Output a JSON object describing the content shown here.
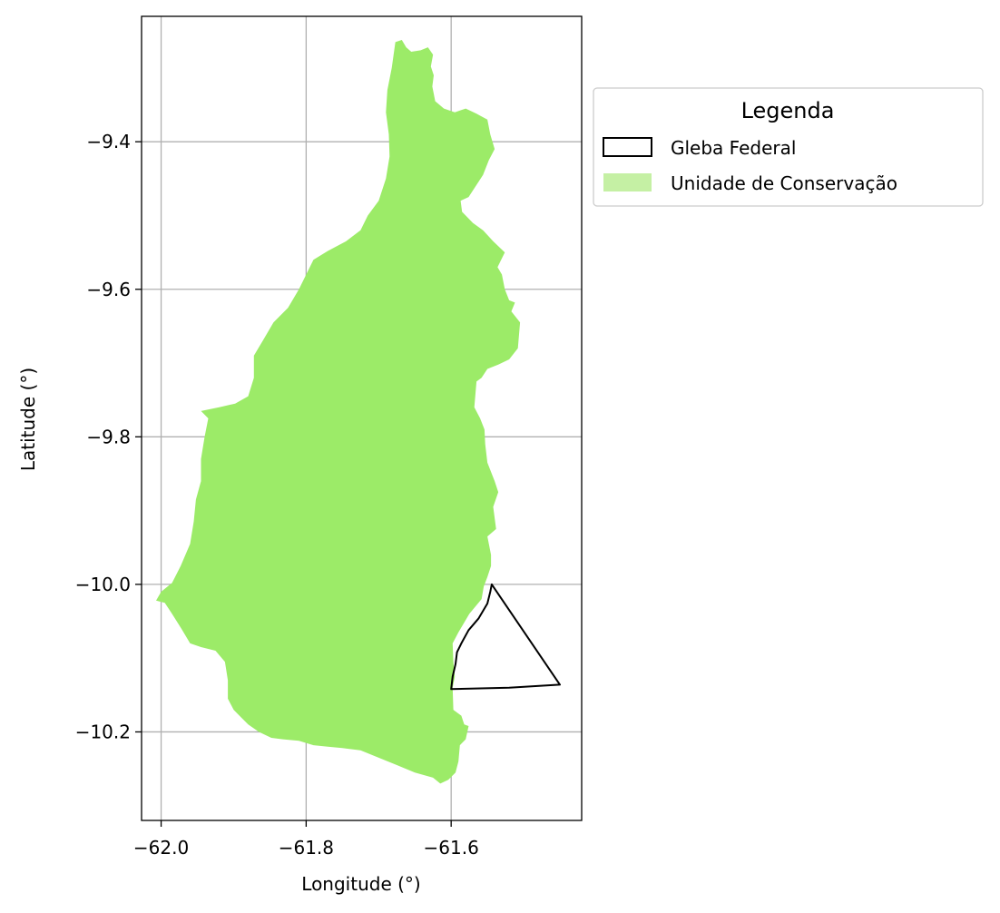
{
  "figure": {
    "xlabel": "Longitude (°)",
    "ylabel": "Latitude (°)"
  },
  "axes": {
    "xlim": [
      -62.027,
      -61.42
    ],
    "ylim": [
      -10.32,
      -9.23
    ],
    "xticks": [
      {
        "value": -62.0,
        "label": "−62.0"
      },
      {
        "value": -61.8,
        "label": "−61.8"
      },
      {
        "value": -61.6,
        "label": "−61.6"
      }
    ],
    "yticks": [
      {
        "value": -9.4,
        "label": "−9.4"
      },
      {
        "value": -9.6,
        "label": "−9.6"
      },
      {
        "value": -9.8,
        "label": "−9.8"
      },
      {
        "value": -10.0,
        "label": "−10.0"
      },
      {
        "value": -10.2,
        "label": "−10.2"
      }
    ],
    "grid": true,
    "grid_color": "#b0b0b0"
  },
  "legend": {
    "title": "Legenda",
    "placement": "outside-upper-right",
    "entries": [
      {
        "label": "Gleba Federal",
        "facecolor": "#ffffff",
        "edgecolor": "#000000"
      },
      {
        "label": "Unidade de Conservação",
        "facecolor": "#c5f0a4",
        "edgecolor": "none"
      }
    ]
  },
  "layers": {
    "unidade_de_conservacao": {
      "fill": "#9ceb68",
      "coords": [
        [
          -61.677,
          -9.265
        ],
        [
          -61.668,
          -9.262
        ],
        [
          -61.662,
          -9.272
        ],
        [
          -61.655,
          -9.278
        ],
        [
          -61.642,
          -9.276
        ],
        [
          -61.632,
          -9.272
        ],
        [
          -61.625,
          -9.282
        ],
        [
          -61.628,
          -9.298
        ],
        [
          -61.624,
          -9.31
        ],
        [
          -61.626,
          -9.325
        ],
        [
          -61.622,
          -9.345
        ],
        [
          -61.61,
          -9.355
        ],
        [
          -61.595,
          -9.36
        ],
        [
          -61.58,
          -9.355
        ],
        [
          -61.565,
          -9.362
        ],
        [
          -61.55,
          -9.37
        ],
        [
          -61.546,
          -9.39
        ],
        [
          -61.54,
          -9.41
        ],
        [
          -61.548,
          -9.425
        ],
        [
          -61.556,
          -9.445
        ],
        [
          -61.566,
          -9.46
        ],
        [
          -61.576,
          -9.475
        ],
        [
          -61.587,
          -9.48
        ],
        [
          -61.585,
          -9.495
        ],
        [
          -61.57,
          -9.51
        ],
        [
          -61.556,
          -9.52
        ],
        [
          -61.542,
          -9.535
        ],
        [
          -61.526,
          -9.55
        ],
        [
          -61.536,
          -9.57
        ],
        [
          -61.53,
          -9.58
        ],
        [
          -61.526,
          -9.6
        ],
        [
          -61.52,
          -9.615
        ],
        [
          -61.512,
          -9.618
        ],
        [
          -61.517,
          -9.63
        ],
        [
          -61.505,
          -9.645
        ],
        [
          -61.508,
          -9.68
        ],
        [
          -61.52,
          -9.695
        ],
        [
          -61.535,
          -9.702
        ],
        [
          -61.55,
          -9.708
        ],
        [
          -61.558,
          -9.72
        ],
        [
          -61.565,
          -9.725
        ],
        [
          -61.568,
          -9.76
        ],
        [
          -61.56,
          -9.775
        ],
        [
          -61.554,
          -9.79
        ],
        [
          -61.553,
          -9.81
        ],
        [
          -61.55,
          -9.835
        ],
        [
          -61.54,
          -9.86
        ],
        [
          -61.535,
          -9.875
        ],
        [
          -61.542,
          -9.895
        ],
        [
          -61.538,
          -9.925
        ],
        [
          -61.55,
          -9.935
        ],
        [
          -61.545,
          -9.96
        ],
        [
          -61.545,
          -9.975
        ],
        [
          -61.55,
          -9.99
        ],
        [
          -61.555,
          -10.003
        ],
        [
          -61.558,
          -10.02
        ],
        [
          -61.575,
          -10.04
        ],
        [
          -61.59,
          -10.065
        ],
        [
          -61.598,
          -10.08
        ],
        [
          -61.597,
          -10.105
        ],
        [
          -61.595,
          -10.125
        ],
        [
          -61.598,
          -10.14
        ],
        [
          -61.597,
          -10.17
        ],
        [
          -61.586,
          -10.178
        ],
        [
          -61.582,
          -10.19
        ],
        [
          -61.576,
          -10.192
        ],
        [
          -61.58,
          -10.21
        ],
        [
          -61.588,
          -10.218
        ],
        [
          -61.59,
          -10.24
        ],
        [
          -61.594,
          -10.255
        ],
        [
          -61.604,
          -10.265
        ],
        [
          -61.615,
          -10.27
        ],
        [
          -61.625,
          -10.262
        ],
        [
          -61.65,
          -10.255
        ],
        [
          -61.675,
          -10.245
        ],
        [
          -61.7,
          -10.235
        ],
        [
          -61.725,
          -10.225
        ],
        [
          -61.75,
          -10.222
        ],
        [
          -61.77,
          -10.22
        ],
        [
          -61.79,
          -10.218
        ],
        [
          -61.81,
          -10.212
        ],
        [
          -61.832,
          -10.21
        ],
        [
          -61.848,
          -10.208
        ],
        [
          -61.865,
          -10.2
        ],
        [
          -61.88,
          -10.19
        ],
        [
          -61.89,
          -10.18
        ],
        [
          -61.9,
          -10.17
        ],
        [
          -61.908,
          -10.155
        ],
        [
          -61.908,
          -10.13
        ],
        [
          -61.912,
          -10.105
        ],
        [
          -61.925,
          -10.09
        ],
        [
          -61.945,
          -10.085
        ],
        [
          -61.96,
          -10.08
        ],
        [
          -61.972,
          -10.06
        ],
        [
          -61.985,
          -10.04
        ],
        [
          -61.995,
          -10.025
        ],
        [
          -62.007,
          -10.022
        ],
        [
          -62.0,
          -10.01
        ],
        [
          -61.985,
          -9.998
        ],
        [
          -61.973,
          -9.975
        ],
        [
          -61.96,
          -9.945
        ],
        [
          -61.955,
          -9.915
        ],
        [
          -61.952,
          -9.885
        ],
        [
          -61.945,
          -9.86
        ],
        [
          -61.945,
          -9.83
        ],
        [
          -61.94,
          -9.8
        ],
        [
          -61.935,
          -9.775
        ],
        [
          -61.945,
          -9.765
        ],
        [
          -61.92,
          -9.76
        ],
        [
          -61.898,
          -9.755
        ],
        [
          -61.88,
          -9.745
        ],
        [
          -61.872,
          -9.72
        ],
        [
          -61.872,
          -9.69
        ],
        [
          -61.86,
          -9.67
        ],
        [
          -61.845,
          -9.645
        ],
        [
          -61.825,
          -9.625
        ],
        [
          -61.81,
          -9.6
        ],
        [
          -61.8,
          -9.58
        ],
        [
          -61.79,
          -9.56
        ],
        [
          -61.77,
          -9.548
        ],
        [
          -61.745,
          -9.535
        ],
        [
          -61.725,
          -9.52
        ],
        [
          -61.715,
          -9.5
        ],
        [
          -61.7,
          -9.48
        ],
        [
          -61.69,
          -9.45
        ],
        [
          -61.685,
          -9.42
        ],
        [
          -61.686,
          -9.39
        ],
        [
          -61.69,
          -9.36
        ],
        [
          -61.688,
          -9.33
        ],
        [
          -61.682,
          -9.3
        ],
        [
          -61.677,
          -9.265
        ]
      ]
    },
    "gleba_federal": {
      "stroke": "#000000",
      "fill": "none",
      "coords": [
        [
          -61.544,
          -10.0
        ],
        [
          -61.45,
          -10.136
        ],
        [
          -61.52,
          -10.14
        ],
        [
          -61.6,
          -10.142
        ],
        [
          -61.598,
          -10.125
        ],
        [
          -61.594,
          -10.108
        ],
        [
          -61.592,
          -10.092
        ],
        [
          -61.586,
          -10.08
        ],
        [
          -61.576,
          -10.062
        ],
        [
          -61.562,
          -10.046
        ],
        [
          -61.55,
          -10.026
        ],
        [
          -61.546,
          -10.01
        ],
        [
          -61.544,
          -10.0
        ]
      ]
    }
  }
}
